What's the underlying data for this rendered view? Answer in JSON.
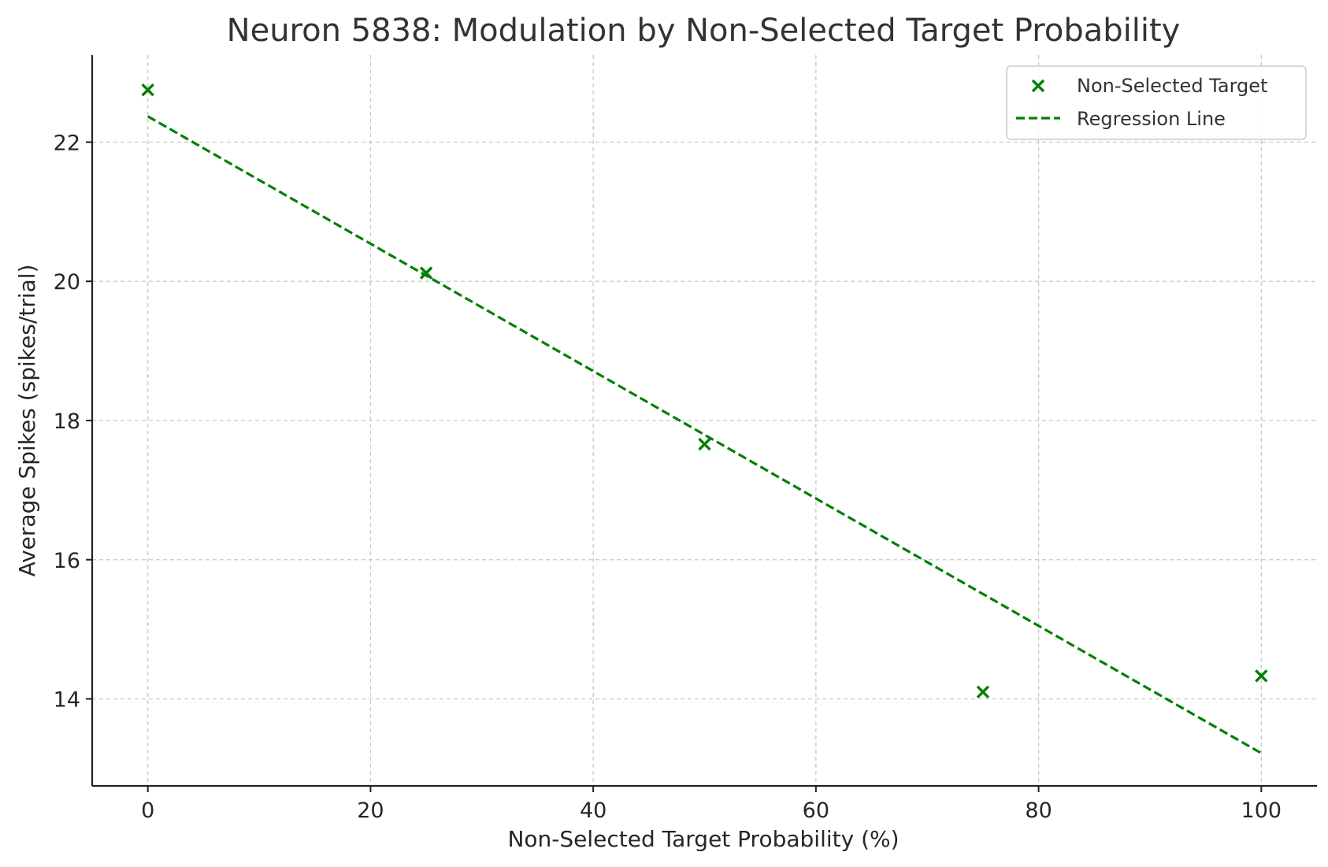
{
  "chart_data": {
    "type": "scatter",
    "title": "Neuron 5838: Modulation by Non-Selected Target Probability",
    "xlabel": "Non-Selected Target Probability (%)",
    "ylabel": "Average Spikes (spikes/trial)",
    "xlim": [
      -5,
      105
    ],
    "ylim": [
      12.75,
      23.25
    ],
    "xticks": [
      0,
      20,
      40,
      60,
      80,
      100
    ],
    "yticks": [
      14,
      16,
      18,
      20,
      22
    ],
    "grid": true,
    "legend_position": "top-right",
    "colors": {
      "series": "#008000"
    },
    "series": [
      {
        "name": "Non-Selected Target",
        "kind": "scatter",
        "marker": "x",
        "x": [
          0,
          25,
          50,
          75,
          100
        ],
        "y": [
          22.75,
          20.12,
          17.66,
          14.1,
          14.33
        ]
      },
      {
        "name": "Regression Line",
        "kind": "line",
        "style": "dashed",
        "x": [
          0,
          100
        ],
        "y": [
          22.37,
          13.22
        ]
      }
    ]
  }
}
